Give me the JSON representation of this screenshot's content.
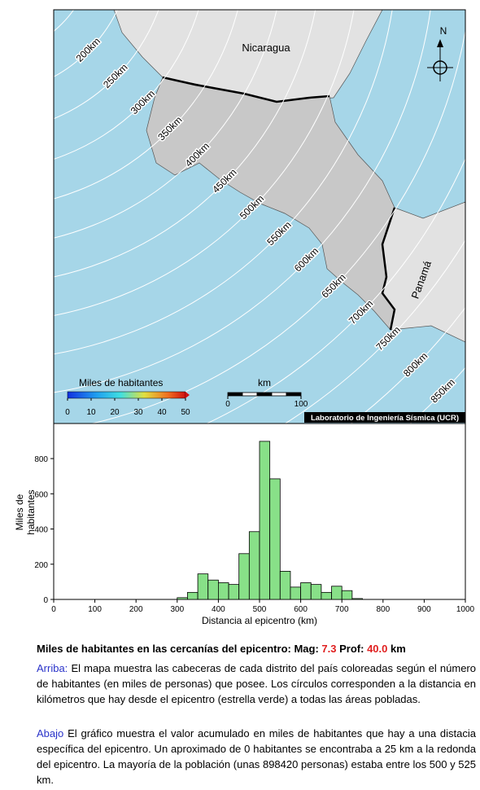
{
  "map": {
    "countries": [
      "Nicaragua",
      "Panamá"
    ],
    "north": "N",
    "rings": [
      "200km",
      "250km",
      "300km",
      "350km",
      "400km",
      "450km",
      "500km",
      "550km",
      "600km",
      "650km",
      "700km",
      "750km",
      "800km",
      "850km"
    ],
    "colorbar": {
      "title": "Miles de habitantes",
      "ticks": [
        0,
        10,
        20,
        30,
        40,
        50
      ]
    },
    "scale": {
      "title": "km",
      "ticks": [
        0,
        100
      ]
    },
    "credit": "Laboratorio de Ingeniería Sísmica (UCR)"
  },
  "chart_data": {
    "type": "histogram",
    "xlabel": "Distancia al epicentro (km)",
    "ylabel": [
      "Miles de",
      "habitantes"
    ],
    "bins": [
      300,
      325,
      350,
      375,
      400,
      425,
      450,
      475,
      500,
      525,
      550,
      575,
      600,
      625,
      650,
      675,
      700,
      725,
      750
    ],
    "counts": [
      10,
      40,
      145,
      110,
      95,
      85,
      260,
      385,
      898,
      685,
      160,
      70,
      95,
      85,
      40,
      75,
      50,
      5
    ],
    "color": "#88e088",
    "xlim": [
      0,
      1000
    ],
    "xticks": [
      0,
      100,
      200,
      300,
      400,
      500,
      600,
      700,
      800,
      900,
      1000
    ],
    "ylim": [
      0,
      990
    ],
    "yticks": [
      0,
      200,
      400,
      600,
      800
    ]
  },
  "caption": {
    "title": "Miles de habitantes en las cercanías del epicentro: Mag:",
    "mag": "7.3",
    "prof_label": "Prof:",
    "prof": "40.0",
    "unit": "km",
    "p1_lead": "Arriba:",
    "p1": "El mapa muestra las cabeceras de cada distrito del país coloreadas según el número de habitantes (en miles de personas) que posee. Los círculos corresponden a la distancia en kilómetros que hay desde el epicentro (estrella verde) a todas las áreas pobladas.",
    "p2_lead": "Abajo",
    "p2": "El gráfico muestra el valor acumulado en miles de habitantes que hay a una distacia específica del epicentro. Un aproximado de 0 habitantes se encontraba a 25 km a la redonda del epicentro. La mayoría de la población (unas 898420 personas) estaba entre los 500 y 525 km."
  }
}
